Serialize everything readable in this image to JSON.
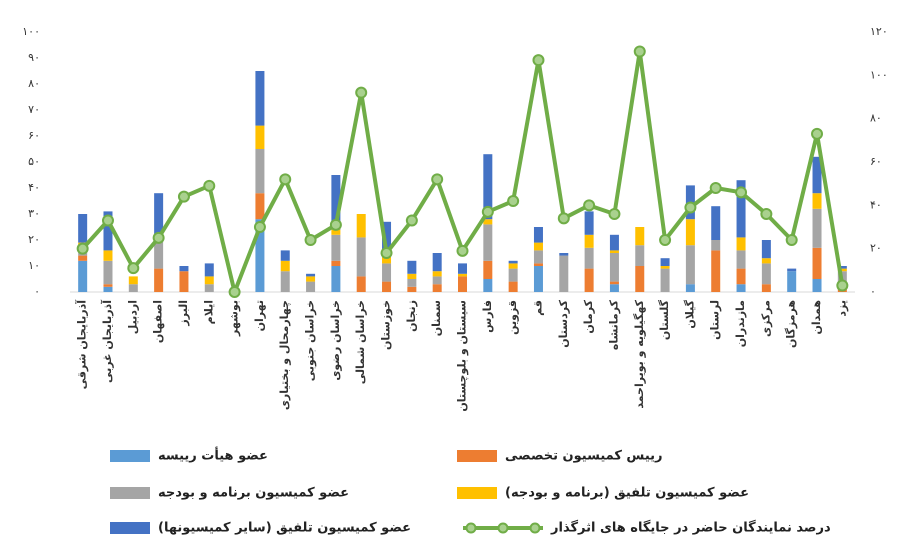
{
  "chart_data": {
    "type": "bar",
    "stacked": true,
    "grid": false,
    "categories": [
      "آذربایجان شرقی",
      "آذربایجان غربی",
      "اردبیل",
      "اصفهان",
      "البرز",
      "ایلام",
      "بوشهر",
      "تهران",
      "چهارمحال و بختیاری",
      "خراسان جنوبی",
      "خراسان رضوی",
      "خراسان شمالی",
      "خوزستان",
      "زنجان",
      "سمنان",
      "سیستان و بلوچستان",
      "فارس",
      "قزوین",
      "قم",
      "کردستان",
      "کرمان",
      "کرمانشاه",
      "کهگیلویه و بویراحمد",
      "گلستان",
      "گیلان",
      "لرستان",
      "مازندران",
      "مرکزی",
      "هرمزگان",
      "همدان",
      "یزد"
    ],
    "series": [
      {
        "name": "عضو هیأت رییسه",
        "color": "#5b9bd5",
        "values": [
          12,
          2,
          0,
          0,
          0,
          0,
          0,
          28,
          0,
          0,
          10,
          0,
          0,
          0,
          0,
          0,
          5,
          0,
          10,
          0,
          0,
          3,
          0,
          0,
          3,
          0,
          3,
          0,
          8,
          5,
          0
        ]
      },
      {
        "name": "رییس کمیسیون تخصصی",
        "color": "#ed7d31",
        "values": [
          2,
          1,
          0,
          9,
          8,
          0,
          0,
          10,
          0,
          0,
          2,
          6,
          4,
          2,
          3,
          6,
          7,
          4,
          1,
          0,
          9,
          1,
          10,
          0,
          0,
          16,
          6,
          3,
          0,
          12,
          2
        ]
      },
      {
        "name": "عضو کمیسیون برنامه و بودجه",
        "color": "#a5a5a5",
        "values": [
          4,
          9,
          3,
          11,
          0,
          3,
          0,
          17,
          8,
          4,
          10,
          15,
          7,
          3,
          3,
          0,
          14,
          5,
          5,
          14,
          8,
          11,
          8,
          9,
          15,
          4,
          7,
          8,
          0,
          15,
          6
        ]
      },
      {
        "name": "عضو کمیسیون تلفیق (برنامه و بودجه)",
        "color": "#ffc000",
        "values": [
          1,
          4,
          3,
          0,
          0,
          3,
          0,
          9,
          4,
          2,
          2,
          9,
          3,
          2,
          2,
          1,
          2,
          2,
          3,
          0,
          5,
          1,
          7,
          1,
          10,
          0,
          5,
          2,
          0,
          6,
          1
        ]
      },
      {
        "name": "عضو کمیسیون تلفیق (سایر کمیسیونها)",
        "color": "#4472c4",
        "values": [
          11,
          15,
          0,
          18,
          2,
          5,
          0,
          21,
          4,
          1,
          21,
          0,
          13,
          5,
          7,
          4,
          25,
          1,
          6,
          1,
          9,
          6,
          0,
          3,
          13,
          13,
          22,
          7,
          1,
          14,
          1
        ]
      },
      {
        "name": "درصد نمایندگان حاضر در جایگاه های اثرگذار",
        "type": "line",
        "axis": "y2",
        "color": "#70ad47",
        "values": [
          20,
          33,
          11,
          25,
          44,
          49,
          0,
          30,
          52,
          24,
          31,
          92,
          18,
          33,
          52,
          19,
          37,
          42,
          107,
          34,
          40,
          36,
          111,
          24,
          39,
          48,
          46,
          36,
          24,
          73,
          3
        ]
      }
    ],
    "ylim": [
      0,
      100
    ],
    "yticks": [
      {
        "value": 0,
        "label": "۰"
      },
      {
        "value": 10,
        "label": "۱۰"
      },
      {
        "value": 20,
        "label": "۲۰"
      },
      {
        "value": 30,
        "label": "۳۰"
      },
      {
        "value": 40,
        "label": "۴۰"
      },
      {
        "value": 50,
        "label": "۵۰"
      },
      {
        "value": 60,
        "label": "۶۰"
      },
      {
        "value": 70,
        "label": "۷۰"
      },
      {
        "value": 80,
        "label": "۸۰"
      },
      {
        "value": 90,
        "label": "۹۰"
      },
      {
        "value": 100,
        "label": "۱۰۰"
      }
    ],
    "y2lim": [
      0,
      120
    ],
    "y2ticks": [
      {
        "value": 0,
        "label": "۰"
      },
      {
        "value": 20,
        "label": "۲۰"
      },
      {
        "value": 40,
        "label": "۴۰"
      },
      {
        "value": 60,
        "label": "۶۰"
      },
      {
        "value": 80,
        "label": "۸۰"
      },
      {
        "value": 100,
        "label": "۱۰۰"
      },
      {
        "value": 120,
        "label": "۱۲۰"
      }
    ]
  }
}
